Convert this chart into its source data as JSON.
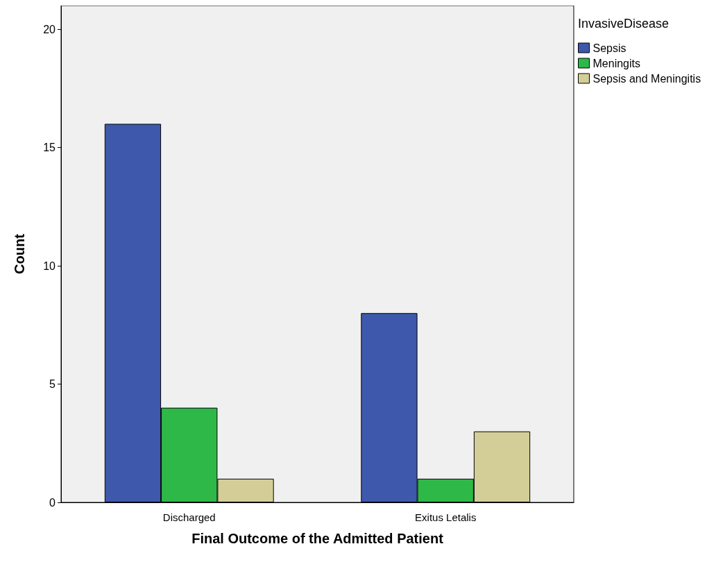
{
  "chart_data": {
    "type": "bar",
    "xlabel": "Final Outcome of the Admitted Patient",
    "ylabel": "Count",
    "legend_title": "InvasiveDisease",
    "categories": [
      "Discharged",
      "Exitus Letalis"
    ],
    "series": [
      {
        "name": "Sepsis",
        "color": "#3e58ac",
        "values": [
          16,
          8
        ]
      },
      {
        "name": "Meningits",
        "color": "#2eb848",
        "values": [
          4,
          1
        ]
      },
      {
        "name": "Sepsis and Meningitis",
        "color": "#d3ce97",
        "values": [
          1,
          3
        ]
      }
    ],
    "ylim": [
      0,
      21
    ],
    "yticks": [
      0,
      5,
      10,
      15,
      20
    ],
    "grid": false,
    "legend": "top right"
  }
}
